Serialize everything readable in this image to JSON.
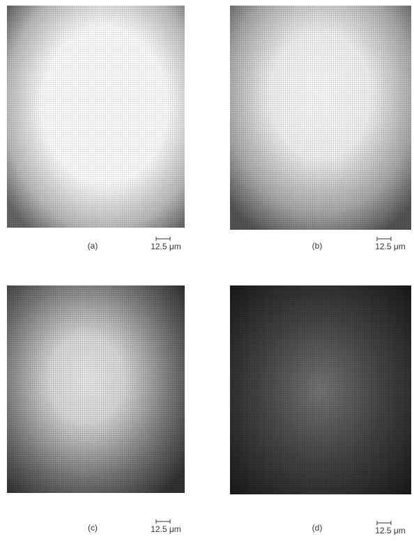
{
  "panels": [
    {
      "label": "(a)",
      "scale": "12.5 μm"
    },
    {
      "label": "(b)",
      "scale": "12.5 μm"
    },
    {
      "label": "(c)",
      "scale": "12.5 μm"
    },
    {
      "label": "(d)",
      "scale": "12.5 μm"
    }
  ]
}
